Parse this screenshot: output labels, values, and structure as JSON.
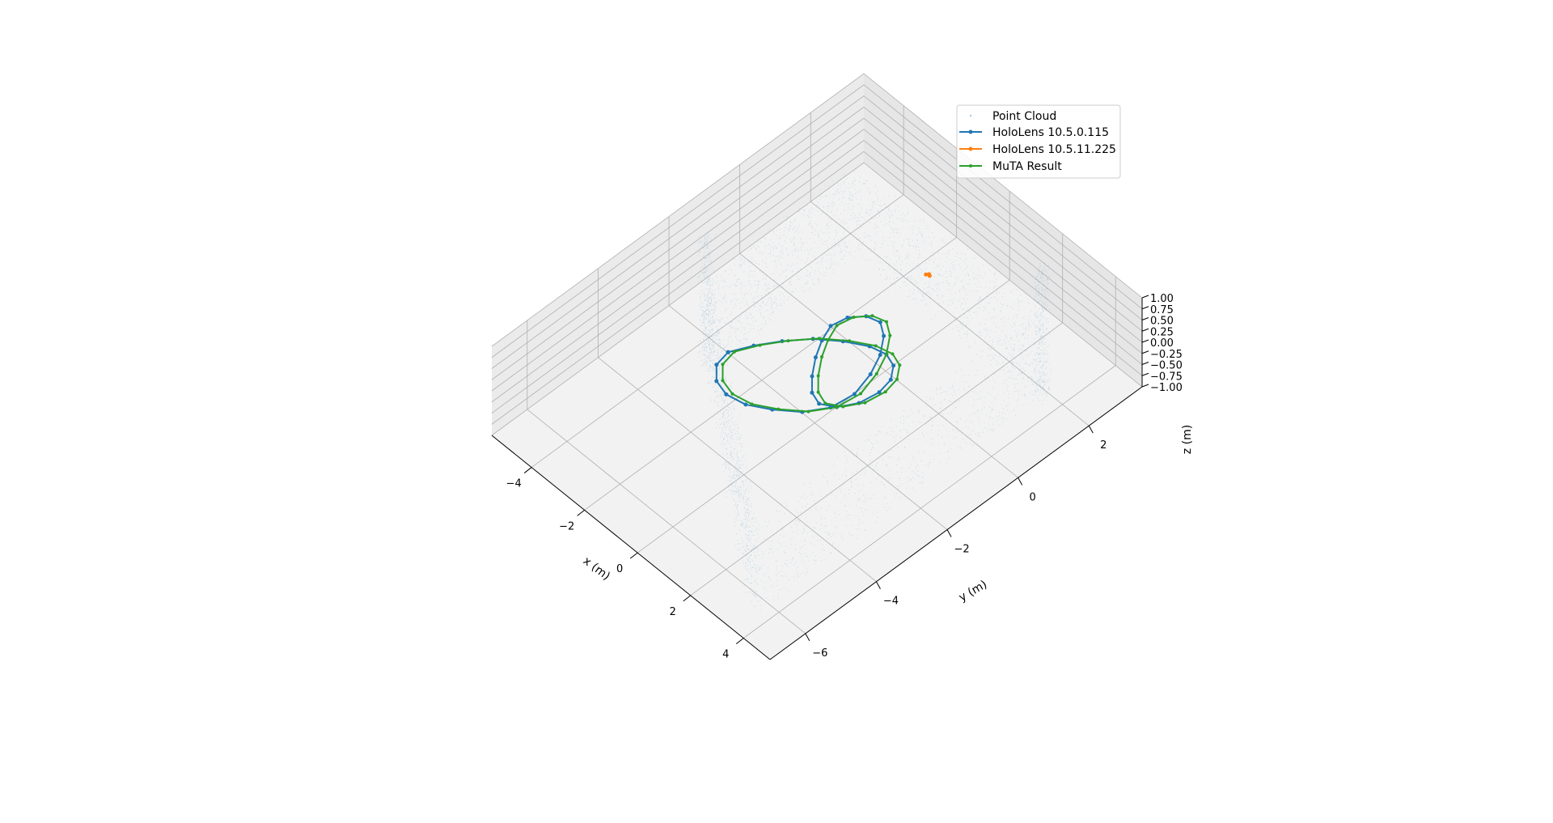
{
  "chart_data": {
    "type": "scatter",
    "projection": "3d",
    "title": "",
    "xlabel": "x (m)",
    "ylabel": "y (m)",
    "zlabel": "z (m)",
    "xlim": [
      -5.5,
      5
    ],
    "ylim": [
      -7,
      3.5
    ],
    "zlim": [
      -1,
      1
    ],
    "x_ticks": [
      "−4",
      "−2",
      "0",
      "2",
      "4"
    ],
    "x_tick_values": [
      -4,
      -2,
      0,
      2,
      4
    ],
    "y_ticks": [
      "−6",
      "−4",
      "−2",
      "0",
      "2"
    ],
    "y_tick_values": [
      -6,
      -4,
      -2,
      0,
      2
    ],
    "z_ticks": [
      "−1.00",
      "−0.75",
      "−0.50",
      "−0.25",
      "0.00",
      "0.25",
      "0.50",
      "0.75",
      "1.00"
    ],
    "z_tick_values": [
      -1,
      -0.75,
      -0.5,
      -0.25,
      0,
      0.25,
      0.5,
      0.75,
      1
    ],
    "grid": true,
    "legend_position": "top-right",
    "series": [
      {
        "name": "Point Cloud",
        "kind": "scatter",
        "color": "#1f77b4",
        "description_walls": [
          {
            "from": [
              -3.2,
              -2.6
            ],
            "to": [
              3.6,
              -6.4
            ]
          },
          {
            "from": [
              3.6,
              -6.4
            ],
            "to": [
              3.4,
              1.8
            ]
          },
          {
            "from": [
              -3.4,
              1.6
            ],
            "to": [
              3.4,
              1.8
            ]
          },
          {
            "from": [
              -3.2,
              -2.6
            ],
            "to": [
              -3.4,
              1.6
            ]
          }
        ]
      },
      {
        "name": "HoloLens 10.5.0.115",
        "kind": "line",
        "color": "#1f77b4",
        "x": [
          -2.2,
          -1.9,
          -1.5,
          -1.0,
          -0.4,
          0.2,
          0.7,
          1.1,
          1.4,
          1.5,
          1.4,
          1.1,
          0.7,
          0.3,
          -0.1,
          -0.5,
          -0.8,
          -1.0,
          -0.9,
          -0.6,
          -0.2,
          0.2,
          0.6,
          0.9,
          1.1,
          1.0,
          0.6,
          0.0,
          -0.6,
          -1.2,
          -1.7,
          -2.1,
          -2.2
        ],
        "y": [
          -2.8,
          -2.3,
          -1.8,
          -1.3,
          -0.9,
          -0.6,
          -0.5,
          -0.6,
          -0.9,
          -1.3,
          -1.8,
          -2.2,
          -2.4,
          -2.3,
          -2.0,
          -1.6,
          -1.2,
          -0.8,
          -0.4,
          -0.1,
          0.0,
          -0.2,
          -0.6,
          -1.1,
          -1.7,
          -2.3,
          -2.8,
          -3.2,
          -3.5,
          -3.6,
          -3.5,
          -3.2,
          -2.8
        ],
        "z": [
          0.0,
          0.0,
          0.0,
          0.0,
          0.0,
          0.0,
          0.0,
          0.0,
          0.0,
          0.0,
          0.0,
          0.0,
          0.0,
          0.0,
          0.0,
          0.0,
          0.0,
          0.0,
          0.0,
          0.0,
          0.0,
          0.0,
          0.0,
          0.0,
          0.0,
          0.0,
          0.0,
          0.0,
          0.0,
          0.0,
          0.0,
          0.0,
          0.0
        ]
      },
      {
        "name": "HoloLens 10.5.11.225",
        "kind": "line",
        "color": "#ff7f0e",
        "x": [
          -0.55,
          -0.5,
          -0.45
        ],
        "y": [
          1.55,
          1.6,
          1.58
        ],
        "z": [
          0.0,
          0.0,
          0.0
        ]
      },
      {
        "name": "MuTA Result",
        "kind": "line",
        "color": "#2ca02c",
        "x": [
          -2.1,
          -1.8,
          -1.4,
          -0.9,
          -0.3,
          0.3,
          0.8,
          1.2,
          1.5,
          1.6,
          1.5,
          1.2,
          0.8,
          0.4,
          0.0,
          -0.4,
          -0.7,
          -0.9,
          -0.8,
          -0.5,
          -0.1,
          0.3,
          0.7,
          1.0,
          1.2,
          1.1,
          0.7,
          0.1,
          -0.5,
          -1.1,
          -1.6,
          -2.0,
          -2.1
        ],
        "y": [
          -2.7,
          -2.2,
          -1.7,
          -1.2,
          -0.8,
          -0.5,
          -0.4,
          -0.5,
          -0.8,
          -1.2,
          -1.7,
          -2.1,
          -2.3,
          -2.2,
          -1.9,
          -1.5,
          -1.1,
          -0.7,
          -0.3,
          0.0,
          0.1,
          -0.1,
          -0.5,
          -1.0,
          -1.6,
          -2.2,
          -2.7,
          -3.1,
          -3.4,
          -3.5,
          -3.4,
          -3.1,
          -2.7
        ],
        "z": [
          0.0,
          0.0,
          0.0,
          0.0,
          0.0,
          0.0,
          0.0,
          0.0,
          0.0,
          0.0,
          0.0,
          0.0,
          0.0,
          0.0,
          0.0,
          0.0,
          0.0,
          0.0,
          0.0,
          0.0,
          0.0,
          0.0,
          0.0,
          0.0,
          0.0,
          0.0,
          0.0,
          0.0,
          0.0,
          0.0,
          0.0,
          0.0,
          0.0
        ]
      }
    ]
  }
}
